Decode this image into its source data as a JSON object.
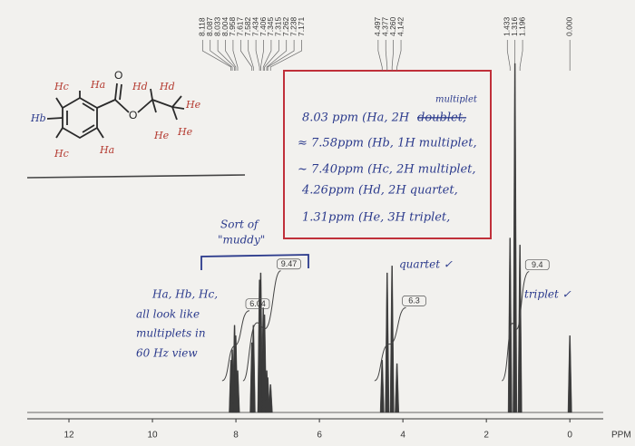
{
  "chart_data": {
    "type": "nmr",
    "x_label": "PPM",
    "xlim": [
      13,
      -0.8
    ],
    "xticks": [
      12,
      10,
      8,
      6,
      4,
      2,
      0
    ],
    "ylim": [
      0,
      100
    ],
    "peaks": [
      8.118,
      8.087,
      8.033,
      8.004,
      7.958,
      7.617,
      7.582,
      7.434,
      7.406,
      7.345,
      7.315,
      7.262,
      7.238,
      7.171,
      4.497,
      4.377,
      {
        "value": 4.26,
        "label": "4.260"
      },
      4.142,
      1.433,
      1.316,
      1.196,
      {
        "value": 0,
        "label": "0.000"
      }
    ],
    "heights": [
      15,
      18,
      25,
      22,
      12,
      20,
      25,
      38,
      40,
      30,
      28,
      12,
      10,
      8,
      15,
      40,
      42,
      14,
      50,
      100,
      48,
      22
    ],
    "color": "#3a3a3a",
    "integrals": [
      {
        "value": 6.04,
        "range": [
          8.2,
          7.85
        ]
      },
      {
        "value": 9.47,
        "range": [
          7.7,
          7.1
        ]
      },
      {
        "value": 6.3,
        "range": [
          4.55,
          4.1
        ]
      },
      {
        "value": 9.4,
        "range": [
          1.5,
          1.15
        ]
      }
    ],
    "annotations": {
      "box_lines": [
        "8.03 ppm (Ha, 2H",
        "≈ 7.58ppm (Hb, 1H multiplet,",
        "~ 7.40ppm (Hc, 2H multiplet,",
        "4.26ppm (Hd, 2H quartet,",
        "1.31ppm (He, 3H triplet,"
      ],
      "struck": "doublet,",
      "correction": "multiplet",
      "muddy": [
        "Sort of",
        "\"muddy\""
      ],
      "left_note": [
        "Ha, Hb, Hc,",
        "all look like",
        "multiplets in",
        "60 Hz view"
      ],
      "quartet": "quartet ✓",
      "triplet": "triplet ✓"
    }
  },
  "structure": {
    "labels": [
      "Hc",
      "Ha",
      "O",
      "Hd",
      "Hd",
      "He",
      "Hb",
      "O",
      "He",
      "He",
      "Hc",
      "Ha"
    ]
  }
}
